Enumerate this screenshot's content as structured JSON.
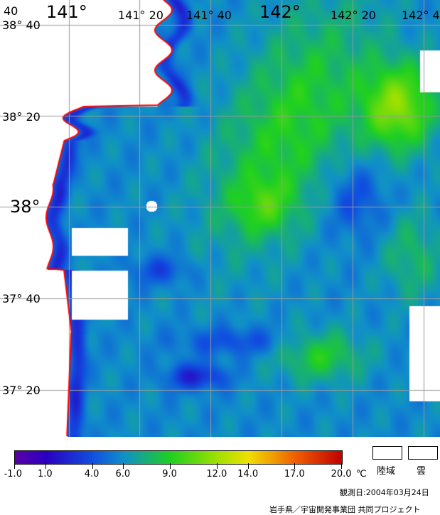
{
  "map": {
    "lon_labels": [
      "141°",
      "141° 20",
      "141° 40",
      "142°",
      "142° 20",
      "142° 4"
    ],
    "lat_labels": [
      "38° 40",
      "38° 20",
      "38°",
      "37° 40",
      "37° 20"
    ],
    "corner_label": "40",
    "colors": {
      "coast": "#ff0000",
      "grid": "#9a9a9a",
      "land": "#ffffff",
      "cloud": "#ffffff"
    }
  },
  "colorbar": {
    "stops": [
      {
        "value": -1.0,
        "color": "#5a00a8"
      },
      {
        "value": 1.0,
        "color": "#2a00c0"
      },
      {
        "value": 4.0,
        "color": "#1050e0"
      },
      {
        "value": 6.0,
        "color": "#1090c8"
      },
      {
        "value": 9.0,
        "color": "#20d020"
      },
      {
        "value": 12.0,
        "color": "#a0e000"
      },
      {
        "value": 14.0,
        "color": "#f0e000"
      },
      {
        "value": 17.0,
        "color": "#f06000"
      },
      {
        "value": 20.0,
        "color": "#c00000"
      }
    ],
    "tick_labels": [
      "-1.0",
      "1.0",
      "4.0",
      "6.0",
      "9.0",
      "12.0",
      "14.0",
      "17.0",
      "20.0"
    ],
    "unit": "℃"
  },
  "legend": {
    "land_label": "陸域",
    "cloud_label": "雲"
  },
  "footer": {
    "date": "観測日:2004年03月24日",
    "credit": "岩手県／宇宙開発事業団 共同プロジェクト"
  }
}
